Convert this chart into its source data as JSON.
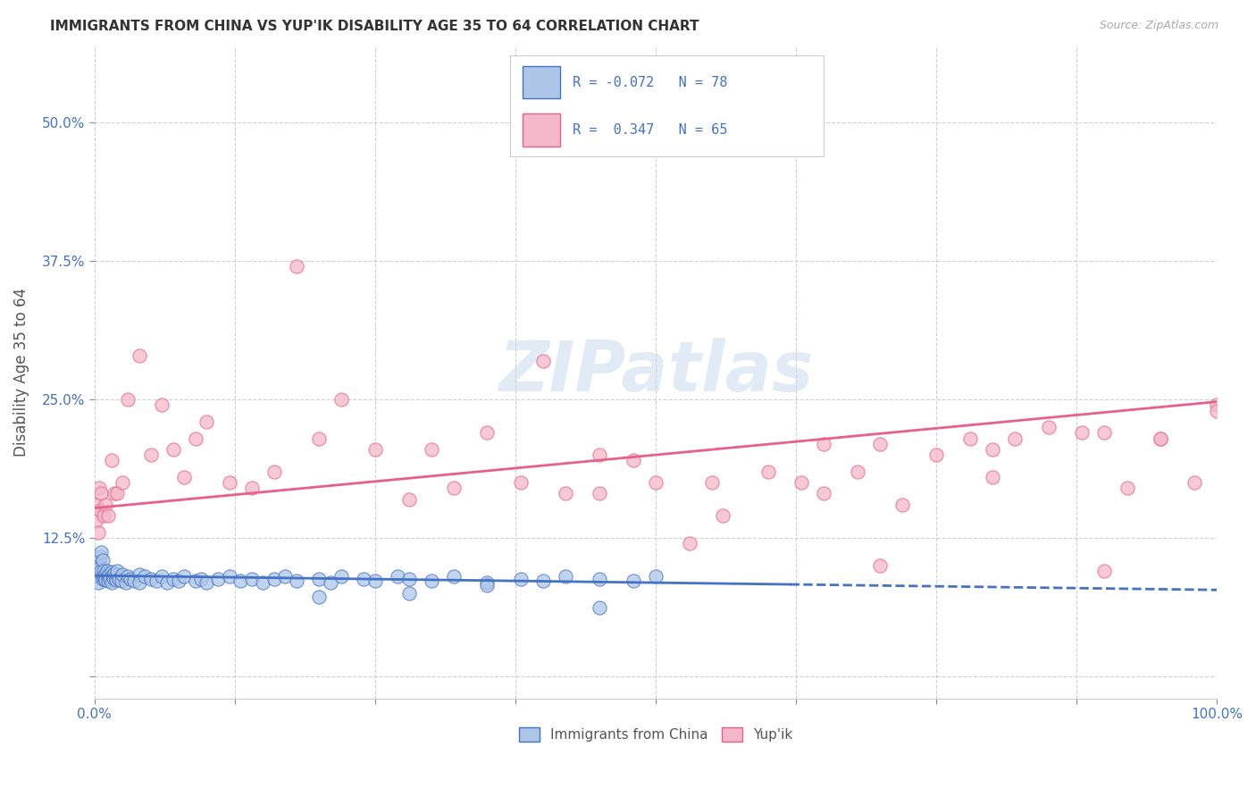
{
  "title": "IMMIGRANTS FROM CHINA VS YUP'IK DISABILITY AGE 35 TO 64 CORRELATION CHART",
  "source": "Source: ZipAtlas.com",
  "ylabel": "Disability Age 35 to 64",
  "legend_label_china": "Immigrants from China",
  "legend_label_yupik": "Yup'ik",
  "china_fill_color": "#adc6e8",
  "yupik_fill_color": "#f5b8c8",
  "china_edge_color": "#4472c4",
  "yupik_edge_color": "#e8608a",
  "china_line_color": "#4472c4",
  "yupik_line_color": "#e8608a",
  "watermark_color": "#c5d8ed",
  "R_china": -0.072,
  "N_china": 78,
  "R_yupik": 0.347,
  "N_yupik": 65,
  "china_scatter_x": [
    0.0,
    0.001,
    0.002,
    0.003,
    0.003,
    0.004,
    0.005,
    0.005,
    0.006,
    0.006,
    0.007,
    0.007,
    0.008,
    0.008,
    0.009,
    0.01,
    0.01,
    0.011,
    0.012,
    0.012,
    0.013,
    0.014,
    0.015,
    0.015,
    0.016,
    0.017,
    0.018,
    0.019,
    0.02,
    0.02,
    0.022,
    0.024,
    0.025,
    0.028,
    0.03,
    0.032,
    0.035,
    0.04,
    0.04,
    0.045,
    0.05,
    0.055,
    0.06,
    0.065,
    0.07,
    0.075,
    0.08,
    0.09,
    0.095,
    0.1,
    0.11,
    0.12,
    0.13,
    0.14,
    0.15,
    0.16,
    0.17,
    0.18,
    0.2,
    0.21,
    0.22,
    0.24,
    0.25,
    0.27,
    0.28,
    0.3,
    0.32,
    0.35,
    0.38,
    0.4,
    0.42,
    0.45,
    0.48,
    0.5,
    0.2,
    0.28,
    0.35,
    0.45
  ],
  "china_scatter_y": [
    0.09,
    0.092,
    0.095,
    0.1,
    0.085,
    0.103,
    0.098,
    0.108,
    0.095,
    0.112,
    0.088,
    0.105,
    0.095,
    0.09,
    0.088,
    0.093,
    0.087,
    0.095,
    0.09,
    0.086,
    0.092,
    0.088,
    0.094,
    0.085,
    0.091,
    0.089,
    0.093,
    0.087,
    0.092,
    0.095,
    0.088,
    0.086,
    0.092,
    0.085,
    0.09,
    0.088,
    0.086,
    0.092,
    0.085,
    0.09,
    0.088,
    0.086,
    0.09,
    0.085,
    0.088,
    0.086,
    0.09,
    0.086,
    0.088,
    0.085,
    0.088,
    0.09,
    0.086,
    0.088,
    0.085,
    0.088,
    0.09,
    0.086,
    0.088,
    0.085,
    0.09,
    0.088,
    0.086,
    0.09,
    0.088,
    0.086,
    0.09,
    0.085,
    0.088,
    0.086,
    0.09,
    0.088,
    0.086,
    0.09,
    0.072,
    0.075,
    0.082,
    0.062
  ],
  "yupik_scatter_x": [
    0.001,
    0.002,
    0.003,
    0.004,
    0.005,
    0.006,
    0.008,
    0.01,
    0.012,
    0.015,
    0.018,
    0.02,
    0.025,
    0.03,
    0.04,
    0.05,
    0.06,
    0.07,
    0.08,
    0.09,
    0.1,
    0.12,
    0.14,
    0.16,
    0.18,
    0.2,
    0.22,
    0.25,
    0.28,
    0.3,
    0.32,
    0.35,
    0.38,
    0.4,
    0.42,
    0.45,
    0.48,
    0.5,
    0.53,
    0.56,
    0.6,
    0.63,
    0.65,
    0.68,
    0.7,
    0.72,
    0.75,
    0.78,
    0.8,
    0.82,
    0.85,
    0.88,
    0.9,
    0.92,
    0.95,
    0.98,
    1.0,
    0.45,
    0.7,
    0.8,
    0.9,
    0.95,
    1.0,
    0.55,
    0.65
  ],
  "yupik_scatter_y": [
    0.14,
    0.155,
    0.13,
    0.17,
    0.15,
    0.165,
    0.145,
    0.155,
    0.145,
    0.195,
    0.165,
    0.165,
    0.175,
    0.25,
    0.29,
    0.2,
    0.245,
    0.205,
    0.18,
    0.215,
    0.23,
    0.175,
    0.17,
    0.185,
    0.37,
    0.215,
    0.25,
    0.205,
    0.16,
    0.205,
    0.17,
    0.22,
    0.175,
    0.285,
    0.165,
    0.2,
    0.195,
    0.175,
    0.12,
    0.145,
    0.185,
    0.175,
    0.21,
    0.185,
    0.21,
    0.155,
    0.2,
    0.215,
    0.205,
    0.215,
    0.225,
    0.22,
    0.22,
    0.17,
    0.215,
    0.175,
    0.245,
    0.165,
    0.1,
    0.18,
    0.095,
    0.215,
    0.24,
    0.175,
    0.165
  ],
  "xlim": [
    0.0,
    1.0
  ],
  "ylim": [
    -0.02,
    0.57
  ],
  "x_ticks": [
    0.0,
    0.125,
    0.25,
    0.375,
    0.5,
    0.625,
    0.75,
    0.875,
    1.0
  ],
  "x_tick_labels": [
    "0.0%",
    "",
    "",
    "",
    "",
    "",
    "",
    "",
    "100.0%"
  ],
  "y_ticks": [
    0.0,
    0.125,
    0.25,
    0.375,
    0.5
  ],
  "y_tick_labels": [
    "",
    "12.5%",
    "25.0%",
    "37.5%",
    "50.0%"
  ],
  "china_trend_x0": 0.0,
  "china_trend_x1": 0.62,
  "china_trend_y0": 0.091,
  "china_trend_y1": 0.083,
  "china_trend_dash_x0": 0.62,
  "china_trend_dash_x1": 1.0,
  "china_trend_dash_y0": 0.083,
  "china_trend_dash_y1": 0.078,
  "yupik_trend_x0": 0.0,
  "yupik_trend_x1": 1.0,
  "yupik_trend_y0": 0.152,
  "yupik_trend_y1": 0.248,
  "background_color": "#ffffff",
  "grid_color": "#cccccc",
  "label_color_blue": "#4472c4",
  "title_color": "#333333",
  "tick_color": "#888888"
}
